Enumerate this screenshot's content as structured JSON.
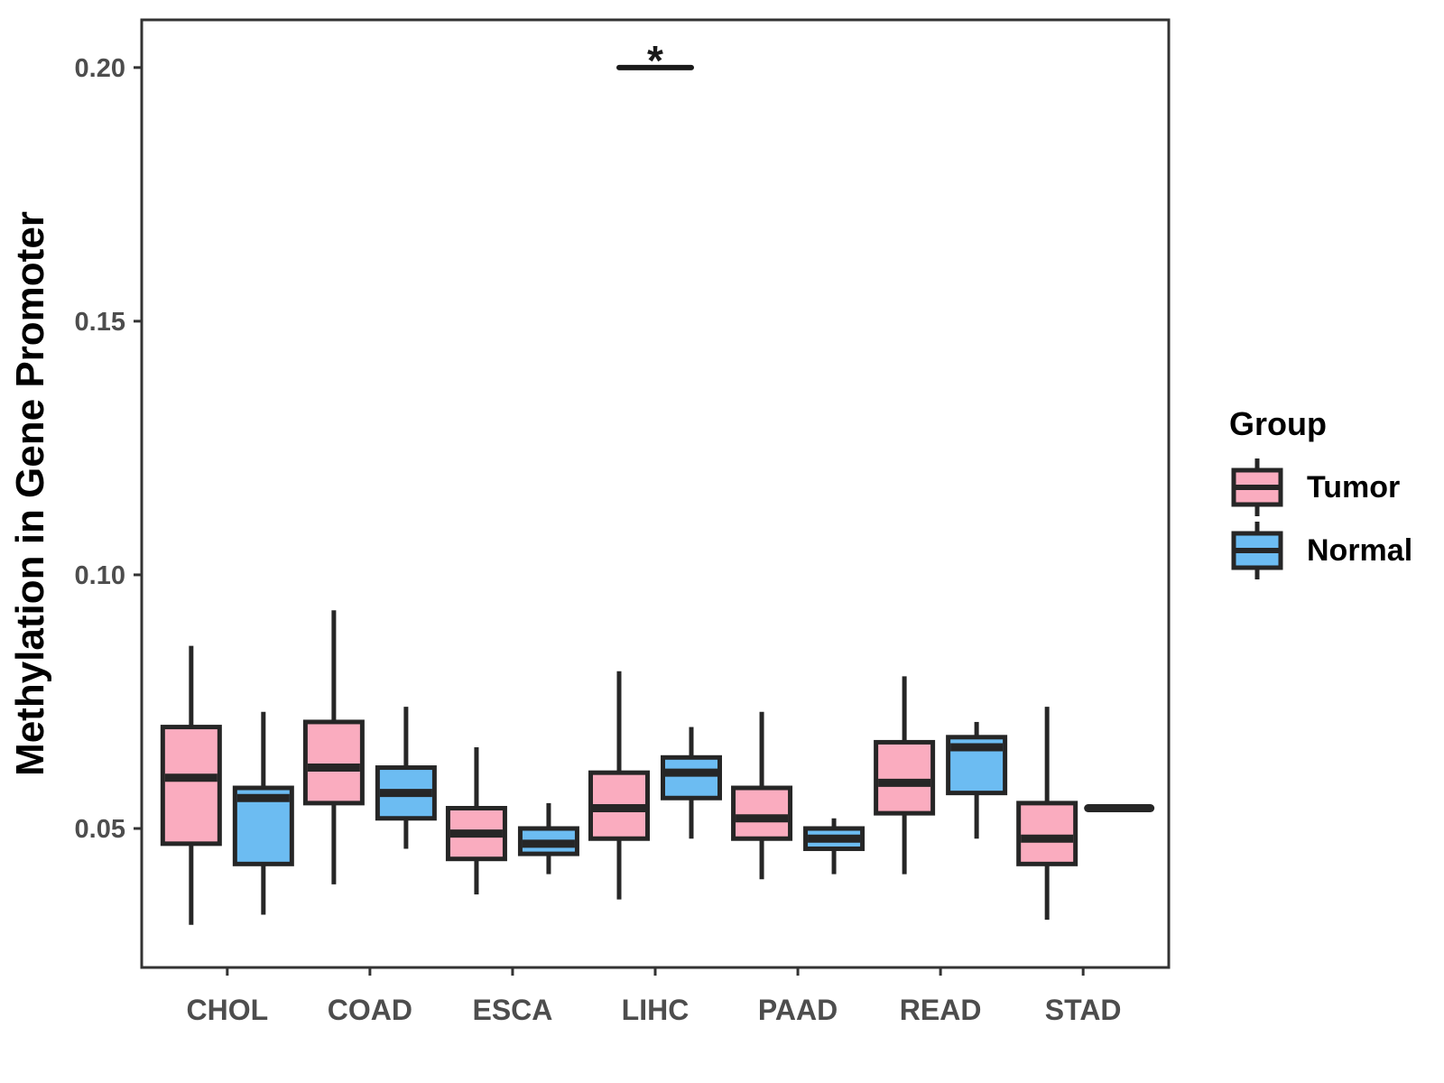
{
  "figure": {
    "background": "#FFFFFF"
  },
  "legend": {
    "title": "Group",
    "entries": [
      {
        "label": "Tumor",
        "color": "#FAACBF"
      },
      {
        "label": "Normal",
        "color": "#6CBCF2"
      }
    ]
  },
  "style_colors": {
    "box_border": "#262626",
    "axis_line": "#333333",
    "tick_label": "#4D4D4D",
    "axis_title": "#000000",
    "annotation": "#1A1A1A",
    "tumor_fill": "#FAACBF",
    "normal_fill": "#6CBCF2"
  },
  "chart_data": {
    "type": "grouped_boxplot",
    "title": "",
    "xlabel": "",
    "ylabel": "Methylation in Gene Promoter",
    "categories": [
      "CHOL",
      "COAD",
      "ESCA",
      "LIHC",
      "PAAD",
      "READ",
      "STAD"
    ],
    "groups": [
      "Tumor",
      "Normal"
    ],
    "legend_title": "Group",
    "legend_position": "right",
    "grid": false,
    "ylim": [
      0.0226,
      0.2094
    ],
    "y_ticks": [
      {
        "value": 0.05,
        "label": "0.05"
      },
      {
        "value": 0.1,
        "label": "0.10"
      },
      {
        "value": 0.15,
        "label": "0.15"
      },
      {
        "value": 0.2,
        "label": "0.20"
      }
    ],
    "series": [
      {
        "name": "Tumor",
        "fill": "#FAACBF",
        "boxes": [
          {
            "category": "CHOL",
            "min": 0.031,
            "q1": 0.047,
            "median": 0.06,
            "q3": 0.07,
            "max": 0.086
          },
          {
            "category": "COAD",
            "min": 0.039,
            "q1": 0.055,
            "median": 0.062,
            "q3": 0.071,
            "max": 0.093
          },
          {
            "category": "ESCA",
            "min": 0.037,
            "q1": 0.044,
            "median": 0.049,
            "q3": 0.054,
            "max": 0.066
          },
          {
            "category": "LIHC",
            "min": 0.036,
            "q1": 0.048,
            "median": 0.054,
            "q3": 0.061,
            "max": 0.081
          },
          {
            "category": "PAAD",
            "min": 0.04,
            "q1": 0.048,
            "median": 0.052,
            "q3": 0.058,
            "max": 0.073
          },
          {
            "category": "READ",
            "min": 0.041,
            "q1": 0.053,
            "median": 0.059,
            "q3": 0.067,
            "max": 0.08
          },
          {
            "category": "STAD",
            "min": 0.032,
            "q1": 0.043,
            "median": 0.048,
            "q3": 0.055,
            "max": 0.074
          }
        ]
      },
      {
        "name": "Normal",
        "fill": "#6CBCF2",
        "boxes": [
          {
            "category": "CHOL",
            "min": 0.033,
            "q1": 0.043,
            "median": 0.056,
            "q3": 0.058,
            "max": 0.073
          },
          {
            "category": "COAD",
            "min": 0.046,
            "q1": 0.052,
            "median": 0.057,
            "q3": 0.062,
            "max": 0.074
          },
          {
            "category": "ESCA",
            "min": 0.041,
            "q1": 0.045,
            "median": 0.047,
            "q3": 0.05,
            "max": 0.055
          },
          {
            "category": "LIHC",
            "min": 0.048,
            "q1": 0.056,
            "median": 0.061,
            "q3": 0.064,
            "max": 0.07
          },
          {
            "category": "PAAD",
            "min": 0.041,
            "q1": 0.046,
            "median": 0.048,
            "q3": 0.05,
            "max": 0.052
          },
          {
            "category": "READ",
            "min": 0.048,
            "q1": 0.057,
            "median": 0.066,
            "q3": 0.068,
            "max": 0.071
          },
          {
            "category": "STAD",
            "min": 0.054,
            "q1": 0.054,
            "median": 0.054,
            "q3": 0.054,
            "max": 0.054
          }
        ]
      }
    ],
    "annotations": [
      {
        "type": "significance",
        "label": "*",
        "category": "LIHC",
        "from_group": "Tumor",
        "to_group": "Normal",
        "y": 0.2
      }
    ]
  }
}
